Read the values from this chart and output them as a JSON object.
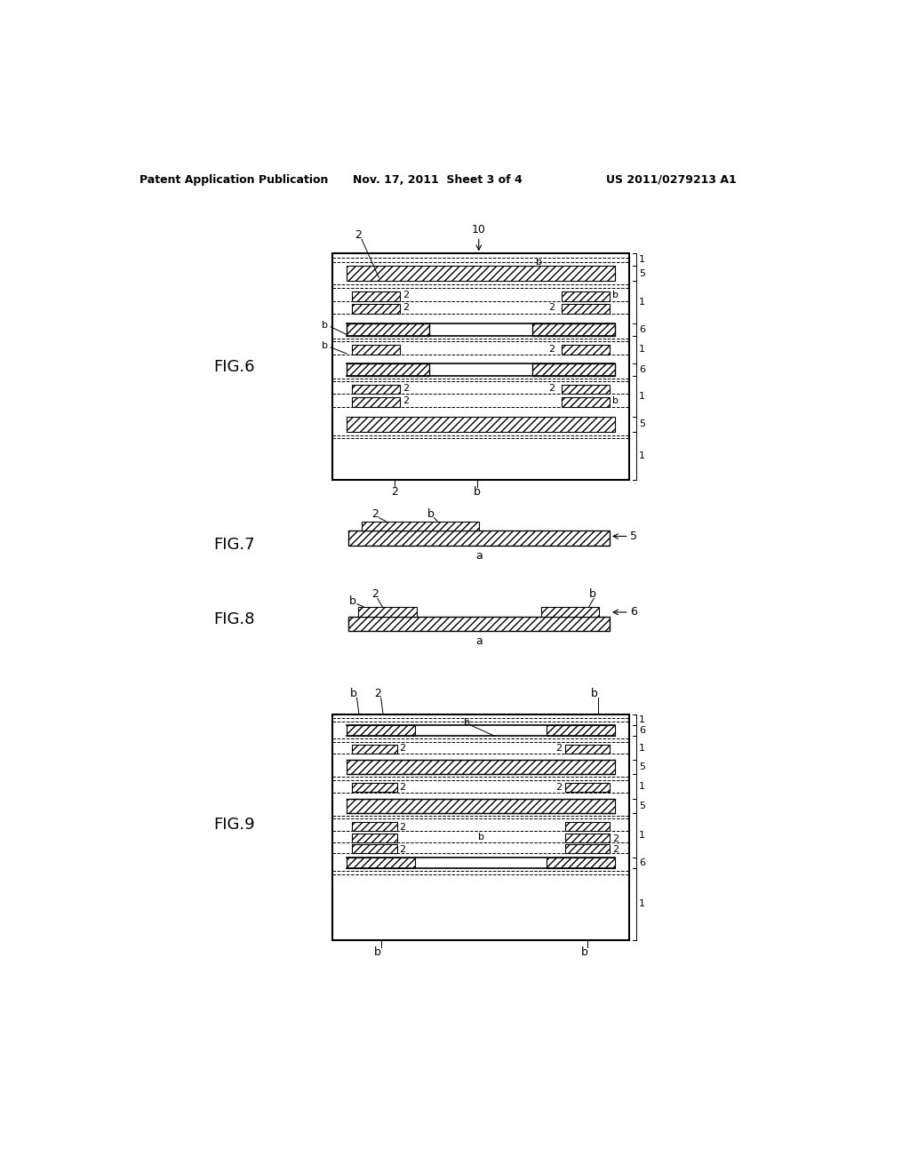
{
  "bg_color": "#ffffff",
  "header_left": "Patent Application Publication",
  "header_center": "Nov. 17, 2011  Sheet 3 of 4",
  "header_right": "US 2011/0279213 A1"
}
